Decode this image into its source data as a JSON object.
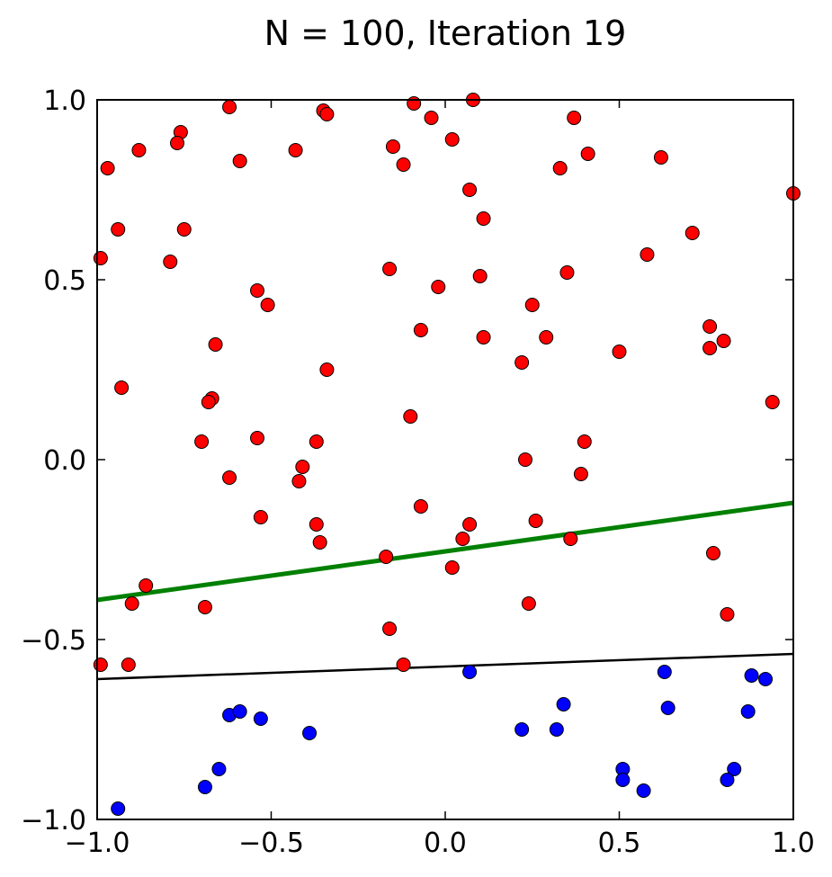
{
  "chart_data": {
    "type": "scatter",
    "title": "N = 100, Iteration 19",
    "xlabel": "",
    "ylabel": "",
    "xlim": [
      -1.0,
      1.0
    ],
    "ylim": [
      -1.0,
      1.0
    ],
    "xticks": [
      "−1.0",
      "−0.5",
      "0.0",
      "0.5",
      "1.0"
    ],
    "yticks": [
      "−1.0",
      "−0.5",
      "0.0",
      "0.5",
      "1.0"
    ],
    "grid": false,
    "legend": "none",
    "colors": {
      "positive": "#ff0000",
      "negative": "#0000ff",
      "hypothesis": "#008000",
      "target": "#000000"
    },
    "series": [
      {
        "class": "positive",
        "color": "#ff0000",
        "points": [
          [
            -0.62,
            0.98
          ],
          [
            -0.35,
            0.97
          ],
          [
            -0.34,
            0.96
          ],
          [
            -0.09,
            0.99
          ],
          [
            0.08,
            1.0
          ],
          [
            -0.04,
            0.95
          ],
          [
            0.37,
            0.95
          ],
          [
            -0.76,
            0.91
          ],
          [
            -0.77,
            0.88
          ],
          [
            0.02,
            0.89
          ],
          [
            -0.88,
            0.86
          ],
          [
            -0.43,
            0.86
          ],
          [
            -0.15,
            0.87
          ],
          [
            -0.59,
            0.83
          ],
          [
            -0.97,
            0.81
          ],
          [
            -0.12,
            0.82
          ],
          [
            0.33,
            0.81
          ],
          [
            0.41,
            0.85
          ],
          [
            0.62,
            0.84
          ],
          [
            1.0,
            0.74
          ],
          [
            0.07,
            0.75
          ],
          [
            0.11,
            0.67
          ],
          [
            -0.94,
            0.64
          ],
          [
            -0.75,
            0.64
          ],
          [
            0.71,
            0.63
          ],
          [
            -0.99,
            0.56
          ],
          [
            -0.79,
            0.55
          ],
          [
            0.58,
            0.57
          ],
          [
            -0.16,
            0.53
          ],
          [
            0.35,
            0.52
          ],
          [
            0.1,
            0.51
          ],
          [
            -0.02,
            0.48
          ],
          [
            -0.54,
            0.47
          ],
          [
            -0.51,
            0.43
          ],
          [
            0.25,
            0.43
          ],
          [
            0.76,
            0.37
          ],
          [
            -0.66,
            0.32
          ],
          [
            -0.07,
            0.36
          ],
          [
            0.11,
            0.34
          ],
          [
            0.29,
            0.34
          ],
          [
            0.8,
            0.33
          ],
          [
            0.76,
            0.31
          ],
          [
            0.5,
            0.3
          ],
          [
            0.22,
            0.27
          ],
          [
            -0.34,
            0.25
          ],
          [
            -0.93,
            0.2
          ],
          [
            -0.67,
            0.17
          ],
          [
            -0.68,
            0.16
          ],
          [
            0.94,
            0.16
          ],
          [
            -0.1,
            0.12
          ],
          [
            -0.7,
            0.05
          ],
          [
            -0.54,
            0.06
          ],
          [
            -0.37,
            0.05
          ],
          [
            0.4,
            0.05
          ],
          [
            -0.41,
            -0.02
          ],
          [
            0.23,
            0.0
          ],
          [
            0.39,
            -0.04
          ],
          [
            -0.62,
            -0.05
          ],
          [
            -0.42,
            -0.06
          ],
          [
            -0.07,
            -0.13
          ],
          [
            -0.53,
            -0.16
          ],
          [
            -0.37,
            -0.18
          ],
          [
            0.07,
            -0.18
          ],
          [
            0.26,
            -0.17
          ],
          [
            -0.36,
            -0.23
          ],
          [
            0.05,
            -0.22
          ],
          [
            0.36,
            -0.22
          ],
          [
            0.77,
            -0.26
          ],
          [
            -0.17,
            -0.27
          ],
          [
            0.02,
            -0.3
          ],
          [
            -0.86,
            -0.35
          ],
          [
            -0.9,
            -0.4
          ],
          [
            0.24,
            -0.4
          ],
          [
            -0.69,
            -0.41
          ],
          [
            0.81,
            -0.43
          ],
          [
            -0.16,
            -0.47
          ],
          [
            -0.12,
            -0.57
          ],
          [
            -0.91,
            -0.57
          ],
          [
            -0.99,
            -0.57
          ]
        ]
      },
      {
        "class": "negative",
        "color": "#0000ff",
        "points": [
          [
            0.07,
            -0.59
          ],
          [
            0.63,
            -0.59
          ],
          [
            0.88,
            -0.6
          ],
          [
            0.92,
            -0.61
          ],
          [
            -0.62,
            -0.71
          ],
          [
            -0.59,
            -0.7
          ],
          [
            -0.53,
            -0.72
          ],
          [
            -0.39,
            -0.76
          ],
          [
            0.34,
            -0.68
          ],
          [
            0.64,
            -0.69
          ],
          [
            0.87,
            -0.7
          ],
          [
            0.22,
            -0.75
          ],
          [
            0.32,
            -0.75
          ],
          [
            -0.65,
            -0.86
          ],
          [
            -0.69,
            -0.91
          ],
          [
            0.51,
            -0.86
          ],
          [
            0.51,
            -0.89
          ],
          [
            0.57,
            -0.92
          ],
          [
            0.83,
            -0.86
          ],
          [
            0.81,
            -0.89
          ],
          [
            -0.94,
            -0.97
          ]
        ]
      }
    ],
    "lines": [
      {
        "name": "hypothesis",
        "color": "#008000",
        "width": 5,
        "x": [
          -1.0,
          1.0
        ],
        "y": [
          -0.39,
          -0.12
        ]
      },
      {
        "name": "target",
        "color": "#000000",
        "width": 2.5,
        "x": [
          -1.0,
          1.0
        ],
        "y": [
          -0.61,
          -0.54
        ]
      }
    ]
  }
}
